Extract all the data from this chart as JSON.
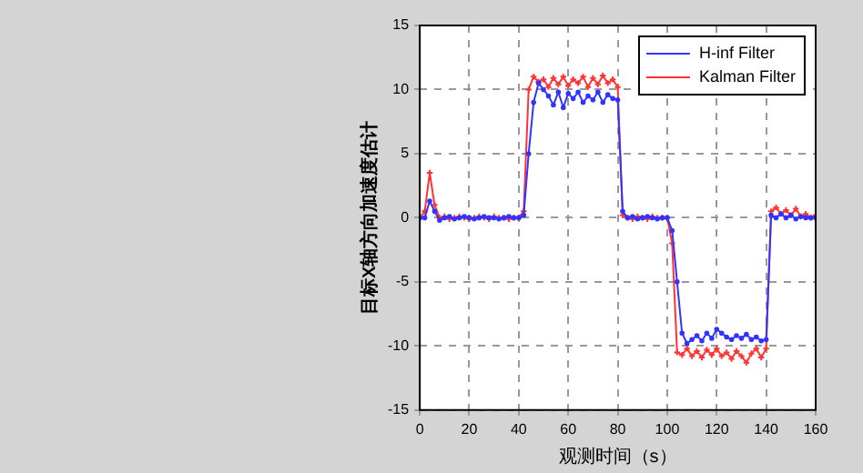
{
  "chart_data": {
    "type": "line",
    "xlabel": "观测时间（s）",
    "ylabel": "目标X轴方向加速度估计",
    "x": [
      0,
      2,
      4,
      6,
      8,
      10,
      12,
      14,
      16,
      18,
      20,
      22,
      24,
      26,
      28,
      30,
      32,
      34,
      36,
      38,
      40,
      42,
      44,
      46,
      48,
      50,
      52,
      54,
      56,
      58,
      60,
      62,
      64,
      66,
      68,
      70,
      72,
      74,
      76,
      78,
      80,
      82,
      84,
      86,
      88,
      90,
      92,
      94,
      96,
      98,
      100,
      102,
      104,
      106,
      108,
      110,
      112,
      114,
      116,
      118,
      120,
      122,
      124,
      126,
      128,
      130,
      132,
      134,
      136,
      138,
      140,
      142,
      144,
      146,
      148,
      150,
      152,
      154,
      156,
      158,
      160
    ],
    "series": [
      {
        "name": "H-inf Filter",
        "color": "#3333ff",
        "marker": "circle",
        "values": [
          0,
          0,
          1.3,
          0.5,
          -0.2,
          0,
          0.1,
          -0.1,
          0,
          0.1,
          0,
          -0.1,
          0,
          0.1,
          0,
          0,
          -0.1,
          0,
          0.1,
          0,
          0,
          0.2,
          5,
          9,
          10.5,
          10,
          9.5,
          8.8,
          9.8,
          8.6,
          9.7,
          9.3,
          9.8,
          9,
          9.5,
          9.2,
          9.8,
          9,
          9.6,
          9.3,
          9.2,
          0.5,
          0,
          0.1,
          -0.1,
          0,
          0.1,
          0,
          -0.1,
          0,
          0,
          -1,
          -5,
          -9,
          -9.8,
          -9.5,
          -9.2,
          -9.6,
          -9,
          -9.4,
          -8.7,
          -9,
          -9.3,
          -9.5,
          -9.2,
          -9.4,
          -9.1,
          -9.5,
          -9.3,
          -9.6,
          -9.5,
          0.2,
          0,
          0.3,
          0,
          0.2,
          -0.1,
          0.1,
          0,
          0,
          0
        ]
      },
      {
        "name": "Kalman Filter",
        "color": "#ff3333",
        "marker": "cross",
        "values": [
          0,
          0.5,
          3.5,
          1,
          0,
          0.1,
          -0.1,
          0,
          0.1,
          0,
          -0.1,
          0,
          0.1,
          0,
          -0.1,
          0.1,
          0,
          0,
          -0.1,
          0,
          0,
          0.5,
          10,
          11,
          10.6,
          10.8,
          10.2,
          10.9,
          10.4,
          11,
          10.3,
          10.8,
          10.5,
          11,
          10.2,
          10.9,
          10.4,
          11.1,
          10.5,
          10.8,
          10.2,
          0.2,
          0,
          -0.1,
          0.1,
          0,
          -0.1,
          0.1,
          0,
          0,
          0,
          -2,
          -10.5,
          -10.7,
          -10.2,
          -10.8,
          -10.4,
          -10.9,
          -10.3,
          -10.7,
          -10.2,
          -10.8,
          -10.5,
          -11,
          -10.4,
          -10.8,
          -11.3,
          -10.6,
          -10.2,
          -10.9,
          -10.2,
          0.5,
          0.8,
          0.3,
          0.6,
          0.2,
          0.7,
          0.1,
          0.3,
          0,
          0.2
        ]
      }
    ],
    "xlim": [
      0,
      160
    ],
    "xticks": [
      0,
      20,
      40,
      60,
      80,
      100,
      120,
      140,
      160
    ],
    "ylim": [
      -15,
      15
    ],
    "yticks": [
      -15,
      -10,
      -5,
      0,
      5,
      10,
      15
    ],
    "grid": true,
    "legend": "top right",
    "line_style": "solid"
  }
}
